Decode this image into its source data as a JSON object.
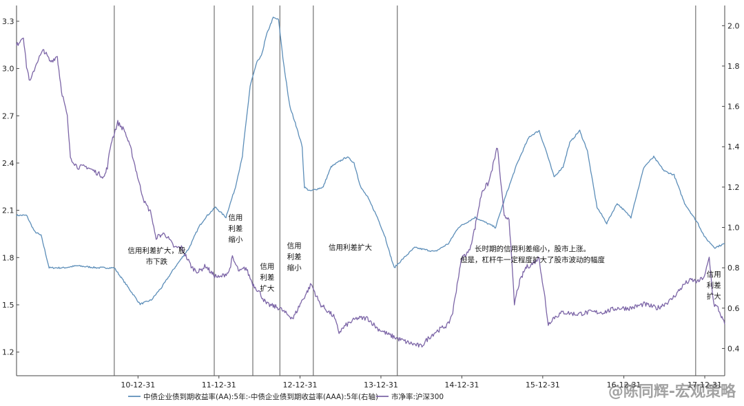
{
  "chart_data": {
    "type": "line",
    "title": "",
    "xlabel": "",
    "ylabel": "",
    "x_tick_labels": [
      "10-12-31",
      "11-12-31",
      "12-12-31",
      "13-12-31",
      "14-12-31",
      "15-12-31",
      "16-12-31",
      "17-12-31"
    ],
    "x_range": [
      "2009-07-01",
      "2018-03-31"
    ],
    "ylim_left": [
      1.05,
      3.4
    ],
    "ylim_right": [
      0.265,
      2.1
    ],
    "y_left_ticks": [
      "3.3",
      "3.0",
      "2.7",
      "2.4",
      "2.1",
      "1.8",
      "1.5",
      "1.2"
    ],
    "y_right_ticks": [
      "2.0",
      "1.8",
      "1.6",
      "1.4",
      "1.2",
      "1.0",
      "0.8",
      "0.6",
      "0.4"
    ],
    "grid": false,
    "legend_position": "bottom",
    "series": [
      {
        "name": "中债企业债到期收益率(AA):5年:-中债企业债到期收益率(AAA):5年(右轴)",
        "axis": "right",
        "color": "#5b8db8",
        "points": [
          [
            "2009-07-01",
            1.06
          ],
          [
            "2009-08-15",
            1.06
          ],
          [
            "2009-09-20",
            0.98
          ],
          [
            "2009-10-20",
            0.96
          ],
          [
            "2009-11-25",
            0.8
          ],
          [
            "2010-02-01",
            0.8
          ],
          [
            "2010-04-01",
            0.81
          ],
          [
            "2010-07-01",
            0.8
          ],
          [
            "2010-09-15",
            0.8
          ],
          [
            "2011-01-10",
            0.62
          ],
          [
            "2011-03-01",
            0.64
          ],
          [
            "2011-04-15",
            0.7
          ],
          [
            "2011-06-15",
            0.8
          ],
          [
            "2011-08-20",
            0.9
          ],
          [
            "2011-10-01",
            1.0
          ],
          [
            "2011-11-01",
            1.05
          ],
          [
            "2011-12-15",
            1.1
          ],
          [
            "2012-02-01",
            1.05
          ],
          [
            "2012-03-15",
            1.2
          ],
          [
            "2012-04-15",
            1.35
          ],
          [
            "2012-05-20",
            1.7
          ],
          [
            "2012-06-20",
            1.82
          ],
          [
            "2012-07-10",
            1.85
          ],
          [
            "2012-08-01",
            1.95
          ],
          [
            "2012-09-01",
            2.04
          ],
          [
            "2012-09-25",
            2.03
          ],
          [
            "2012-10-20",
            1.8
          ],
          [
            "2012-11-15",
            1.6
          ],
          [
            "2012-12-10",
            1.52
          ],
          [
            "2013-01-10",
            1.4
          ],
          [
            "2013-01-20",
            1.2
          ],
          [
            "2013-02-15",
            1.18
          ],
          [
            "2013-04-15",
            1.2
          ],
          [
            "2013-05-20",
            1.3
          ],
          [
            "2013-07-01",
            1.33
          ],
          [
            "2013-08-01",
            1.35
          ],
          [
            "2013-09-01",
            1.32
          ],
          [
            "2013-10-01",
            1.2
          ],
          [
            "2013-11-01",
            1.15
          ],
          [
            "2013-12-15",
            1.05
          ],
          [
            "2014-01-20",
            0.95
          ],
          [
            "2014-02-15",
            0.85
          ],
          [
            "2014-03-01",
            0.8
          ],
          [
            "2014-04-15",
            0.85
          ],
          [
            "2014-06-01",
            0.9
          ],
          [
            "2014-09-01",
            0.88
          ],
          [
            "2014-11-01",
            0.92
          ],
          [
            "2014-12-15",
            1.0
          ],
          [
            "2015-03-01",
            1.05
          ],
          [
            "2015-06-01",
            1.0
          ],
          [
            "2015-07-15",
            1.15
          ],
          [
            "2015-09-01",
            1.3
          ],
          [
            "2015-10-10",
            1.4
          ],
          [
            "2015-11-01",
            1.45
          ],
          [
            "2015-12-15",
            1.48
          ],
          [
            "2016-01-15",
            1.38
          ],
          [
            "2016-02-20",
            1.25
          ],
          [
            "2016-04-01",
            1.3
          ],
          [
            "2016-05-01",
            1.42
          ],
          [
            "2016-06-15",
            1.48
          ],
          [
            "2016-07-20",
            1.38
          ],
          [
            "2016-09-01",
            1.1
          ],
          [
            "2016-10-15",
            1.02
          ],
          [
            "2016-12-01",
            1.12
          ],
          [
            "2017-02-01",
            1.05
          ],
          [
            "2017-04-01",
            1.3
          ],
          [
            "2017-05-15",
            1.35
          ],
          [
            "2017-07-01",
            1.28
          ],
          [
            "2017-08-15",
            1.26
          ],
          [
            "2017-10-01",
            1.12
          ],
          [
            "2017-12-01",
            1.02
          ],
          [
            "2018-01-01",
            0.95
          ],
          [
            "2018-02-15",
            0.9
          ],
          [
            "2018-03-31",
            0.92
          ]
        ]
      },
      {
        "name": "市净率:沪深300",
        "axis": "right",
        "color": "#7b64a6",
        "points": [
          [
            "2009-07-01",
            1.9
          ],
          [
            "2009-08-01",
            1.95
          ],
          [
            "2009-08-15",
            1.8
          ],
          [
            "2009-09-01",
            1.72
          ],
          [
            "2009-10-01",
            1.82
          ],
          [
            "2009-11-01",
            1.88
          ],
          [
            "2009-12-01",
            1.82
          ],
          [
            "2010-01-01",
            1.85
          ],
          [
            "2010-01-20",
            1.68
          ],
          [
            "2010-02-15",
            1.55
          ],
          [
            "2010-03-01",
            1.35
          ],
          [
            "2010-04-01",
            1.3
          ],
          [
            "2010-05-15",
            1.3
          ],
          [
            "2010-06-15",
            1.28
          ],
          [
            "2010-08-01",
            1.25
          ],
          [
            "2010-08-15",
            1.3
          ],
          [
            "2010-09-01",
            1.42
          ],
          [
            "2010-10-01",
            1.52
          ],
          [
            "2010-11-01",
            1.48
          ],
          [
            "2010-12-01",
            1.38
          ],
          [
            "2011-01-10",
            1.2
          ],
          [
            "2011-02-01",
            1.12
          ],
          [
            "2011-03-01",
            1.07
          ],
          [
            "2011-03-20",
            0.95
          ],
          [
            "2011-05-01",
            0.97
          ],
          [
            "2011-06-15",
            0.9
          ],
          [
            "2011-07-15",
            0.9
          ],
          [
            "2011-09-01",
            0.8
          ],
          [
            "2011-10-01",
            0.78
          ],
          [
            "2011-11-01",
            0.81
          ],
          [
            "2011-12-01",
            0.77
          ],
          [
            "2012-01-01",
            0.75
          ],
          [
            "2012-02-15",
            0.78
          ],
          [
            "2012-03-01",
            0.85
          ],
          [
            "2012-04-01",
            0.78
          ],
          [
            "2012-05-01",
            0.8
          ],
          [
            "2012-06-01",
            0.72
          ],
          [
            "2012-07-01",
            0.68
          ],
          [
            "2012-08-01",
            0.62
          ],
          [
            "2012-09-01",
            0.61
          ],
          [
            "2012-10-01",
            0.6
          ],
          [
            "2012-11-01",
            0.57
          ],
          [
            "2012-12-01",
            0.55
          ],
          [
            "2013-01-01",
            0.62
          ],
          [
            "2013-02-01",
            0.68
          ],
          [
            "2013-02-20",
            0.72
          ],
          [
            "2013-03-15",
            0.66
          ],
          [
            "2013-04-01",
            0.62
          ],
          [
            "2013-06-01",
            0.56
          ],
          [
            "2013-06-25",
            0.48
          ],
          [
            "2013-08-01",
            0.52
          ],
          [
            "2013-09-15",
            0.55
          ],
          [
            "2013-11-01",
            0.55
          ],
          [
            "2013-12-15",
            0.5
          ],
          [
            "2014-02-01",
            0.47
          ],
          [
            "2014-03-15",
            0.45
          ],
          [
            "2014-05-01",
            0.43
          ],
          [
            "2014-06-01",
            0.42
          ],
          [
            "2014-07-01",
            0.41
          ],
          [
            "2014-08-01",
            0.45
          ],
          [
            "2014-09-01",
            0.48
          ],
          [
            "2014-10-01",
            0.5
          ],
          [
            "2014-11-01",
            0.52
          ],
          [
            "2014-11-20",
            0.58
          ],
          [
            "2014-12-10",
            0.72
          ],
          [
            "2015-01-01",
            0.85
          ],
          [
            "2015-02-01",
            0.88
          ],
          [
            "2015-03-01",
            1.0
          ],
          [
            "2015-04-01",
            1.18
          ],
          [
            "2015-05-01",
            1.22
          ],
          [
            "2015-06-10",
            1.4
          ],
          [
            "2015-06-20",
            1.28
          ],
          [
            "2015-07-10",
            1.05
          ],
          [
            "2015-08-01",
            1.05
          ],
          [
            "2015-08-25",
            0.62
          ],
          [
            "2015-09-15",
            0.72
          ],
          [
            "2015-10-15",
            0.8
          ],
          [
            "2015-11-15",
            0.82
          ],
          [
            "2015-12-15",
            0.85
          ],
          [
            "2016-01-10",
            0.65
          ],
          [
            "2016-01-25",
            0.52
          ],
          [
            "2016-02-15",
            0.55
          ],
          [
            "2016-04-01",
            0.58
          ],
          [
            "2016-06-01",
            0.57
          ],
          [
            "2016-08-01",
            0.58
          ],
          [
            "2016-10-01",
            0.58
          ],
          [
            "2016-12-01",
            0.6
          ],
          [
            "2017-02-01",
            0.6
          ],
          [
            "2017-04-01",
            0.62
          ],
          [
            "2017-06-01",
            0.6
          ],
          [
            "2017-07-01",
            0.62
          ],
          [
            "2017-08-01",
            0.64
          ],
          [
            "2017-09-01",
            0.68
          ],
          [
            "2017-10-01",
            0.72
          ],
          [
            "2017-11-01",
            0.74
          ],
          [
            "2017-12-01",
            0.73
          ],
          [
            "2018-01-01",
            0.76
          ],
          [
            "2018-01-20",
            0.85
          ],
          [
            "2018-02-10",
            0.62
          ],
          [
            "2018-03-01",
            0.6
          ],
          [
            "2018-03-31",
            0.52
          ]
        ]
      }
    ],
    "vertical_lines": [
      "2010-09-15",
      "2011-12-10",
      "2012-06-01",
      "2012-10-01",
      "2013-03-01",
      "2014-03-15",
      "2017-11-20"
    ],
    "annotations": [
      {
        "lines": [
          "信用利差扩大，股",
          "市下跌"
        ],
        "x": "2011-03-25",
        "y": 1.83,
        "anchor": "middle"
      },
      {
        "lines": [
          "信用",
          "利差",
          "缩小"
        ],
        "x": "2012-03-15",
        "y": 2.04,
        "anchor": "middle"
      },
      {
        "lines": [
          "信用",
          "利差",
          "扩大"
        ],
        "x": "2012-08-05",
        "y": 1.73,
        "anchor": "middle"
      },
      {
        "lines": [
          "信用",
          "利差",
          "缩小"
        ],
        "x": "2012-12-05",
        "y": 1.86,
        "anchor": "middle"
      },
      {
        "lines": [
          "信用利差扩大"
        ],
        "x": "2013-08-15",
        "y": 1.85,
        "anchor": "middle"
      },
      {
        "lines": [
          "长时期的信用利差缩小，股市上涨。",
          "但是，杠杆牛一定程度扩大了股市波动的幅度"
        ],
        "x": "2015-11-15",
        "y": 1.84,
        "anchor": "middle"
      },
      {
        "lines": [
          "信用",
          "利差",
          "扩大"
        ],
        "x": "2018-02-10",
        "y": 1.68,
        "anchor": "middle"
      }
    ]
  },
  "watermark": "@陈同辉-宏观策略"
}
